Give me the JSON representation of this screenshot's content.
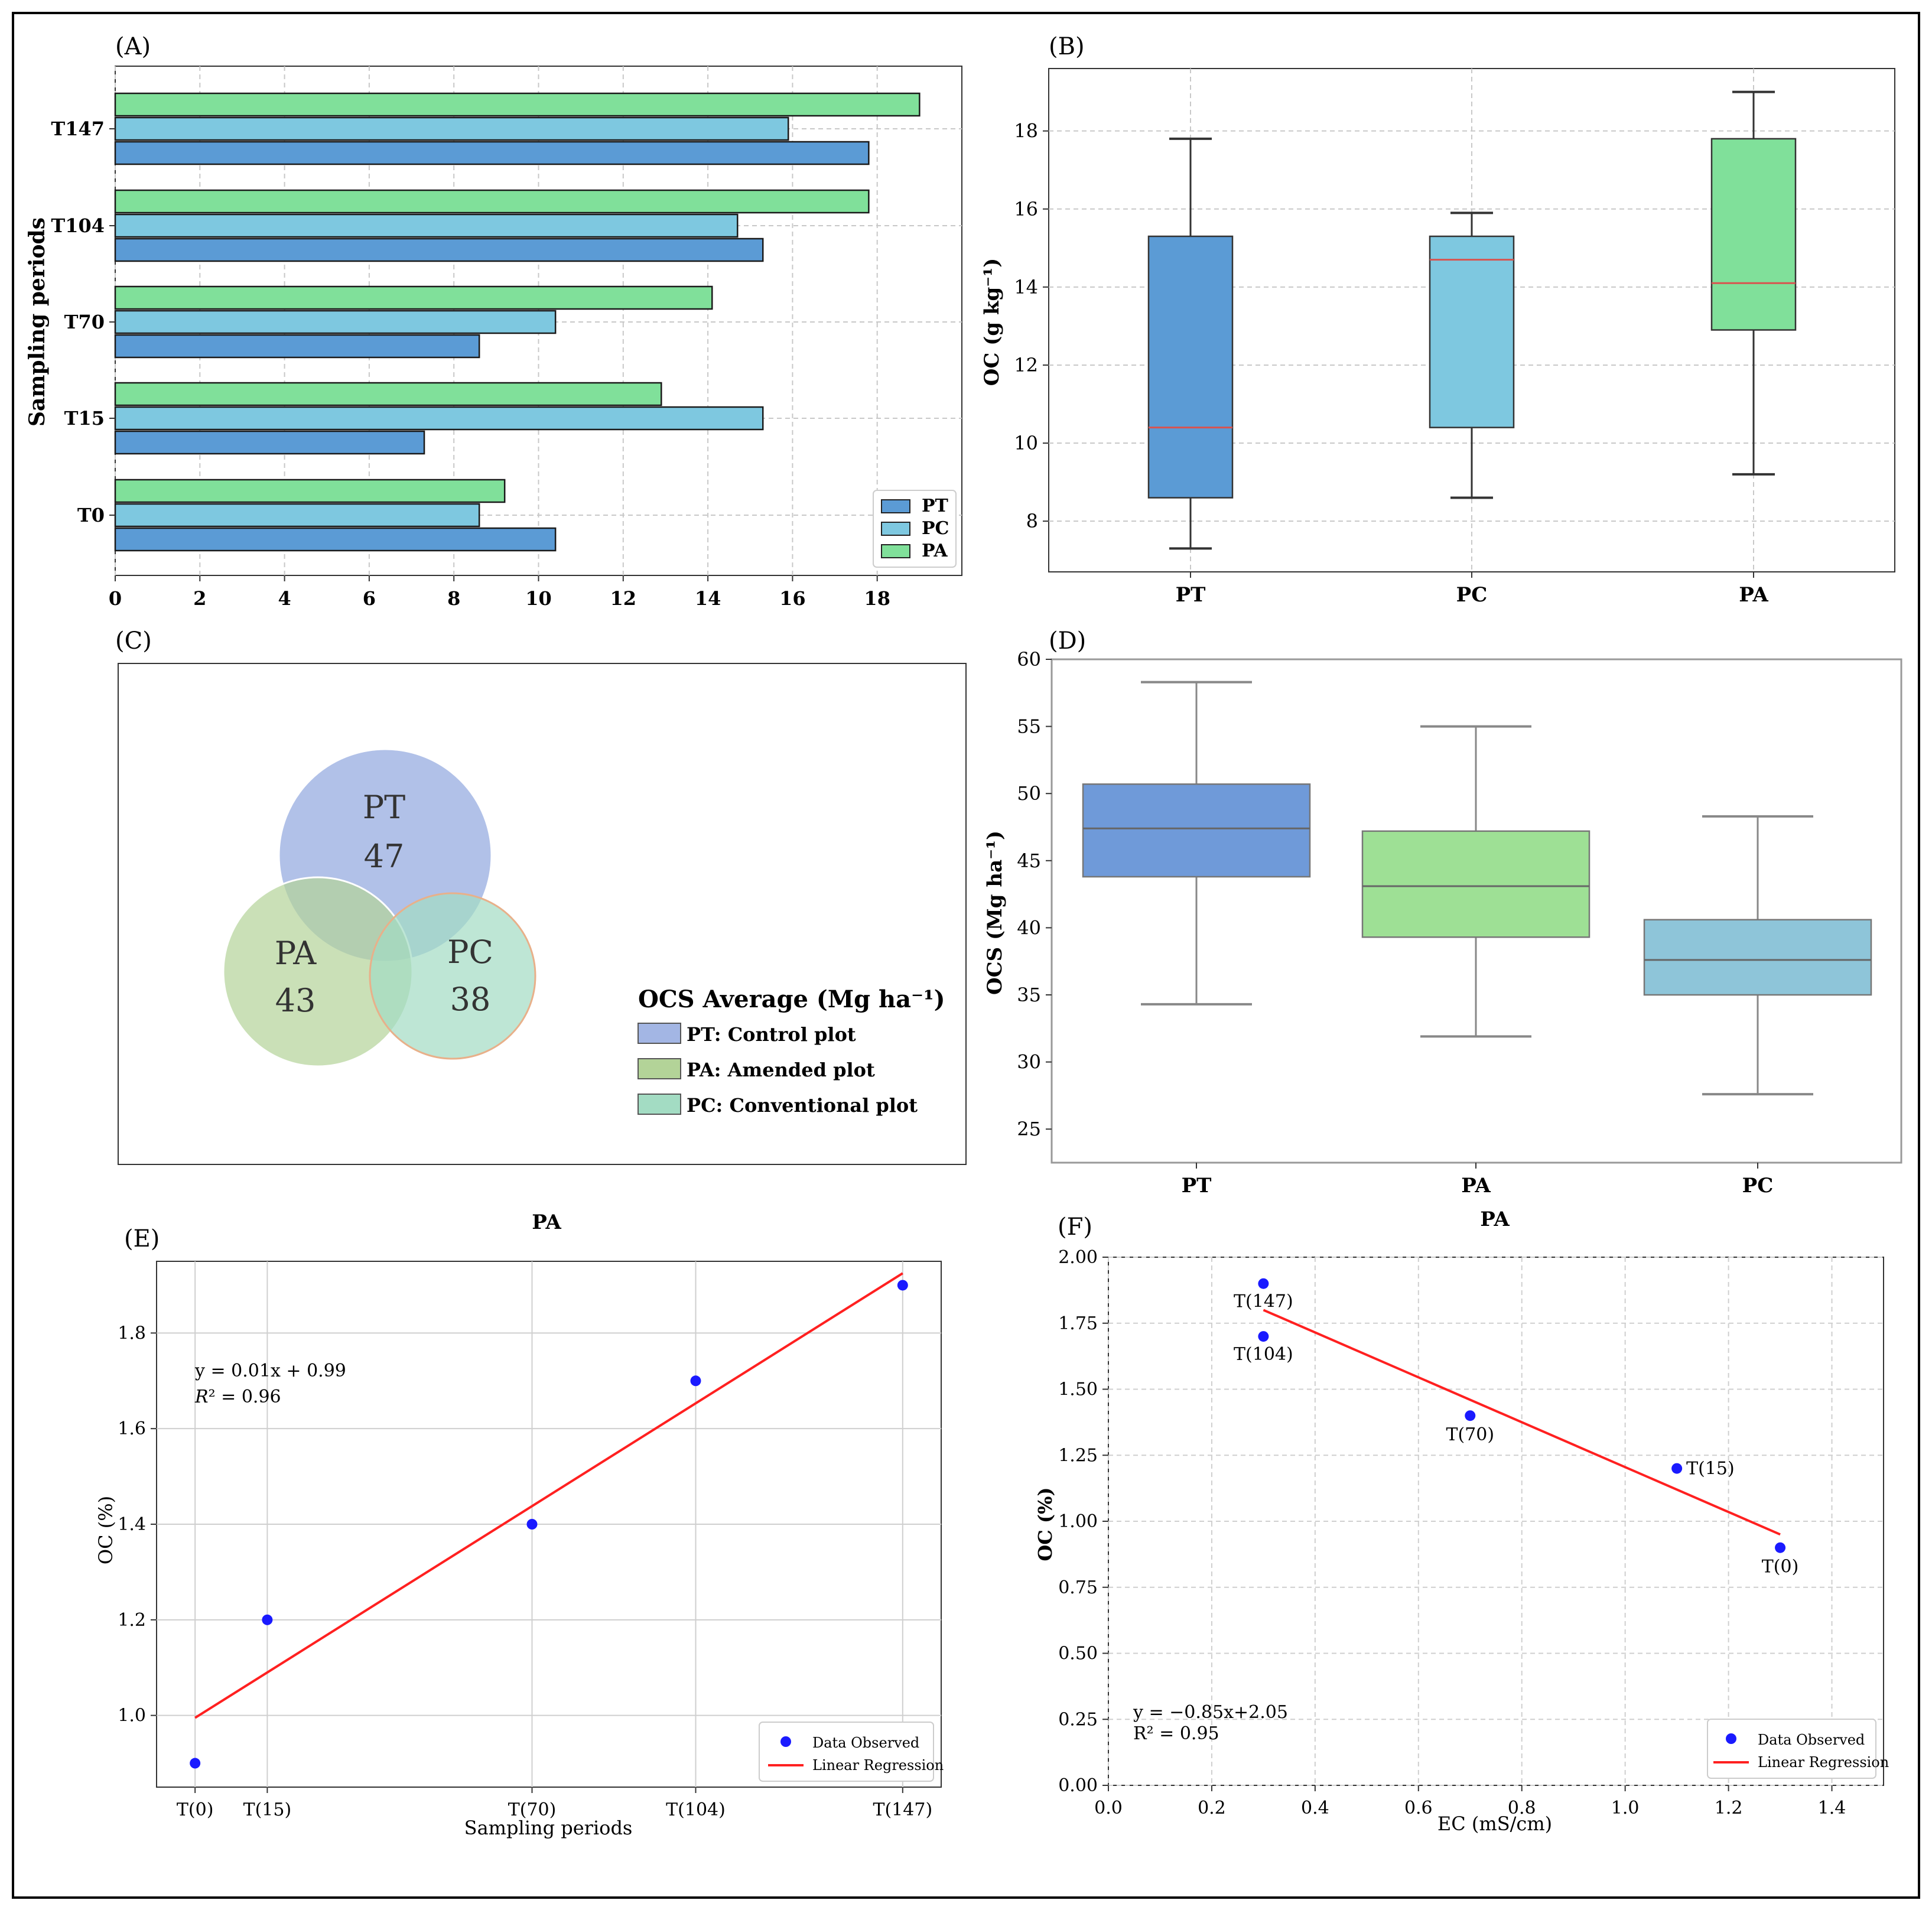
{
  "figure": {
    "outer_border_color": "#000000"
  },
  "colors": {
    "pt_blue": "#5b9bd5",
    "pc_cyan": "#7ec8e0",
    "pa_green": "#80e09a",
    "median_red": "#d9534f",
    "venn_pt": "#a3b6e4",
    "venn_pa": "#b3d398",
    "venn_pc": "#a3dcc3",
    "d_pt": "#6f9ad9",
    "d_pa": "#9ee095",
    "d_pc": "#8ec5d9",
    "scatter_point": "#1a1aff",
    "regression_line": "#ff2020"
  },
  "chart_data": [
    {
      "panel": "(A)",
      "type": "bar",
      "orientation": "horizontal",
      "ylabel": "Sampling periods",
      "categories": [
        "T0",
        "T15",
        "T70",
        "T104",
        "T147"
      ],
      "series": [
        {
          "name": "PT",
          "values": [
            10.4,
            7.3,
            8.6,
            15.3,
            17.8
          ]
        },
        {
          "name": "PC",
          "values": [
            8.6,
            15.3,
            10.4,
            14.7,
            15.9
          ]
        },
        {
          "name": "PA",
          "values": [
            9.2,
            12.9,
            14.1,
            17.8,
            19.0
          ]
        }
      ],
      "xlim": [
        0,
        20
      ],
      "xticks": [
        "0",
        "2",
        "4",
        "6",
        "8",
        "10",
        "12",
        "14",
        "16",
        "18"
      ],
      "grid": true,
      "legend": "bottom-right"
    },
    {
      "panel": "(B)",
      "type": "box",
      "ylabel": "OC (g kg⁻¹)",
      "categories": [
        "PT",
        "PC",
        "PA"
      ],
      "boxes": [
        {
          "min": 7.3,
          "q1": 8.6,
          "median": 10.4,
          "q3": 15.3,
          "max": 17.8
        },
        {
          "min": 8.6,
          "q1": 10.4,
          "median": 14.7,
          "q3": 15.3,
          "max": 15.9
        },
        {
          "min": 9.2,
          "q1": 12.9,
          "median": 14.1,
          "q3": 17.8,
          "max": 19.0
        }
      ],
      "ylim": [
        6.7,
        19.6
      ],
      "yticks": [
        "8",
        "10",
        "12",
        "14",
        "16",
        "18"
      ],
      "grid": true
    },
    {
      "panel": "(C)",
      "type": "venn",
      "circles": [
        {
          "label": "PT",
          "value": "47"
        },
        {
          "label": "PA",
          "value": "43"
        },
        {
          "label": "PC",
          "value": "38"
        }
      ],
      "legend_title": "OCS Average (Mg ha⁻¹)",
      "legend": [
        "PT: Control plot",
        "PA: Amended plot",
        "PC: Conventional plot"
      ]
    },
    {
      "panel": "(D)",
      "type": "box",
      "ylabel": "OCS (Mg ha⁻¹)",
      "categories": [
        "PT",
        "PA",
        "PC"
      ],
      "boxes": [
        {
          "min": 34.3,
          "q1": 43.8,
          "median": 47.4,
          "q3": 50.7,
          "max": 58.3
        },
        {
          "min": 31.9,
          "q1": 39.3,
          "median": 43.1,
          "q3": 47.2,
          "max": 55.0
        },
        {
          "min": 27.6,
          "q1": 35.0,
          "median": 37.6,
          "q3": 40.6,
          "max": 48.3
        }
      ],
      "ylim": [
        22.5,
        60
      ],
      "yticks": [
        "25",
        "30",
        "35",
        "40",
        "45",
        "50",
        "55",
        "60"
      ],
      "grid": false
    },
    {
      "panel": "(E)",
      "type": "scatter",
      "title": "PA",
      "xlabel": "Sampling periods",
      "ylabel": "OC (%)",
      "points": [
        {
          "x": 0,
          "y": 0.9
        },
        {
          "x": 15,
          "y": 1.2
        },
        {
          "x": 70,
          "y": 1.4
        },
        {
          "x": 104,
          "y": 1.7
        },
        {
          "x": 147,
          "y": 1.9
        }
      ],
      "xticks": [
        {
          "x": 0,
          "label": "T(0)"
        },
        {
          "x": 15,
          "label": "T(15)"
        },
        {
          "x": 70,
          "label": "T(70)"
        },
        {
          "x": 104,
          "label": "T(104)"
        },
        {
          "x": 147,
          "label": "T(147)"
        }
      ],
      "yticks": [
        "1.0",
        "1.2",
        "1.4",
        "1.6",
        "1.8"
      ],
      "xlim": [
        -8,
        155
      ],
      "ylim": [
        0.85,
        1.95
      ],
      "regression": {
        "x0": 0,
        "y0": 0.995,
        "x1": 147,
        "y1": 1.925
      },
      "equation": "y = 0.01x + 0.99",
      "r2_label": "R",
      "r2_value": "² = 0.96",
      "legend": [
        "Data Observed",
        "Linear Regression"
      ],
      "grid": true
    },
    {
      "panel": "(F)",
      "type": "scatter",
      "title": "PA",
      "xlabel": "EC (mS/cm)",
      "ylabel": "OC (%)",
      "points": [
        {
          "x": 0.3,
          "y": 1.9,
          "label": "T(147)"
        },
        {
          "x": 0.3,
          "y": 1.7,
          "label": "T(104)"
        },
        {
          "x": 0.7,
          "y": 1.4,
          "label": "T(70)"
        },
        {
          "x": 1.1,
          "y": 1.2,
          "label": "T(15)"
        },
        {
          "x": 1.3,
          "y": 0.9,
          "label": "T(0)"
        }
      ],
      "xticks": [
        "0.0",
        "0.2",
        "0.4",
        "0.6",
        "0.8",
        "1.0",
        "1.2",
        "1.4"
      ],
      "yticks": [
        "0.00",
        "0.25",
        "0.50",
        "0.75",
        "1.00",
        "1.25",
        "1.50",
        "1.75",
        "2.00"
      ],
      "xlim": [
        0,
        1.5
      ],
      "ylim": [
        0,
        2.0
      ],
      "regression": {
        "x0": 0.3,
        "y0": 1.8,
        "x1": 1.3,
        "y1": 0.95
      },
      "equation": "y = −0.85x+2.05",
      "r2_text": "R² = 0.95",
      "legend": [
        "Data Observed",
        "Linear Regression"
      ],
      "grid": true
    }
  ]
}
